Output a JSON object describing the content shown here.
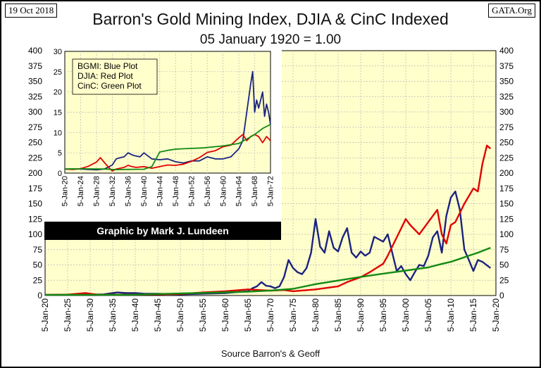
{
  "header": {
    "date": "19 Oct 2018",
    "brand": "GATA.Org",
    "title": "Barron's Gold Mining Index, DJIA & CinC Indexed",
    "subtitle": "05 January 1920 = 1.00",
    "source": "Source Barron's & Geoff",
    "credit": "Graphic by Mark J. Lundeen"
  },
  "chart_data": [
    {
      "type": "line",
      "title": "Barron's Gold Mining Index, DJIA & CinC Indexed",
      "subtitle": "05 January 1920 = 1.00",
      "xlabel": "",
      "ylabel": "",
      "x_ticks": [
        "5-Jan-20",
        "5-Jan-25",
        "5-Jan-30",
        "5-Jan-35",
        "5-Jan-40",
        "5-Jan-45",
        "5-Jan-50",
        "5-Jan-55",
        "5-Jan-60",
        "5-Jan-65",
        "5-Jan-70",
        "5-Jan-75",
        "5-Jan-80",
        "5-Jan-85",
        "5-Jan-90",
        "5-Jan-95",
        "5-Jan-00",
        "5-Jan-05",
        "5-Jan-10",
        "5-Jan-15",
        "5-Jan-20"
      ],
      "y_ticks": [
        0,
        25,
        50,
        75,
        100,
        125,
        150,
        175,
        200,
        225,
        250,
        275,
        300,
        325,
        350,
        375,
        400
      ],
      "xlim": [
        1920,
        2020
      ],
      "ylim": [
        0,
        400
      ],
      "grid": true,
      "series": [
        {
          "color": "#1a237e",
          "x": [
            1920,
            1930,
            1933,
            1935,
            1936,
            1938,
            1940,
            1942,
            1945,
            1950,
            1955,
            1960,
            1963,
            1965,
            1966,
            1967,
            1968,
            1969,
            1970,
            1971,
            1972,
            1973,
            1974,
            1975,
            1976,
            1977,
            1978,
            1979,
            1980,
            1981,
            1982,
            1983,
            1984,
            1985,
            1986,
            1987,
            1988,
            1989,
            1990,
            1991,
            1992,
            1993,
            1994,
            1995,
            1996,
            1997,
            1998,
            1999,
            2000,
            2001,
            2002,
            2003,
            2004,
            2005,
            2006,
            2007,
            2008,
            2009,
            2010,
            2011,
            2012,
            2013,
            2014,
            2015,
            2016,
            2017,
            2018.8
          ],
          "y": [
            1,
            1.5,
            2,
            4,
            5,
            4,
            4,
            3,
            3,
            2,
            3,
            4,
            6,
            7,
            12,
            15,
            22,
            16,
            15,
            12,
            15,
            30,
            58,
            45,
            38,
            35,
            45,
            70,
            125,
            80,
            70,
            105,
            78,
            72,
            95,
            110,
            70,
            62,
            72,
            65,
            70,
            96,
            92,
            88,
            100,
            70,
            40,
            48,
            35,
            25,
            38,
            50,
            48,
            65,
            95,
            105,
            70,
            130,
            160,
            170,
            140,
            75,
            58,
            40,
            58,
            55,
            45
          ]
        },
        {
          "color": "#e00000",
          "x": [
            1920,
            1925,
            1929,
            1930,
            1932,
            1935,
            1940,
            1945,
            1950,
            1955,
            1960,
            1965,
            1970,
            1973,
            1975,
            1980,
            1985,
            1987,
            1990,
            1992,
            1995,
            1996,
            1998,
            2000,
            2001,
            2003,
            2005,
            2007,
            2008,
            2009,
            2010,
            2011,
            2013,
            2015,
            2016,
            2017,
            2018,
            2018.8
          ],
          "y": [
            1,
            1.5,
            4,
            3,
            1,
            1.5,
            1.5,
            2,
            2.5,
            5,
            7,
            10,
            8,
            9,
            7,
            10,
            15,
            22,
            30,
            38,
            52,
            65,
            95,
            125,
            115,
            100,
            120,
            140,
            100,
            85,
            115,
            120,
            150,
            175,
            170,
            215,
            245,
            240
          ]
        },
        {
          "color": "#138a13",
          "x": [
            1920,
            1925,
            1930,
            1935,
            1940,
            1945,
            1950,
            1955,
            1960,
            1965,
            1970,
            1975,
            1980,
            1985,
            1990,
            1995,
            2000,
            2005,
            2008,
            2010,
            2012,
            2014,
            2016,
            2018.8
          ],
          "y": [
            1,
            1.2,
            1.3,
            1.1,
            1.4,
            2.5,
            3.5,
            4.3,
            5.2,
            6.2,
            8.1,
            10.9,
            18.6,
            24.5,
            30.3,
            35.7,
            40.8,
            46,
            51.6,
            55,
            60,
            65,
            70,
            78
          ]
        }
      ]
    },
    {
      "type": "line",
      "title": "",
      "legend": [
        "BGMI: Blue Plot",
        "DJIA: Red Plot",
        "CinC: Green Plot"
      ],
      "x_ticks": [
        "5-Jan-20",
        "5-Jan-24",
        "5-Jan-28",
        "5-Jan-32",
        "5-Jan-36",
        "5-Jan-40",
        "5-Jan-44",
        "5-Jan-48",
        "5-Jan-52",
        "5-Jan-56",
        "5-Jan-60",
        "5-Jan-64",
        "5-Jan-68",
        "5-Jan-72"
      ],
      "y_ticks": [
        0,
        5,
        10,
        15,
        20,
        25,
        30
      ],
      "xlim": [
        1920,
        1972
      ],
      "ylim": [
        0,
        30
      ],
      "grid": true,
      "series": [
        {
          "color": "#1a237e",
          "x": [
            1920,
            1924,
            1928,
            1930,
            1932,
            1933,
            1934,
            1935,
            1936,
            1937,
            1938,
            1939,
            1940,
            1942,
            1944,
            1946,
            1948,
            1950,
            1952,
            1954,
            1956,
            1958,
            1960,
            1962,
            1964,
            1965,
            1966,
            1967,
            1967.5,
            1968,
            1968.5,
            1969,
            1970,
            1970.5,
            1971,
            1971.5,
            1972
          ],
          "y": [
            1,
            1,
            0.8,
            1,
            2,
            3.5,
            3.8,
            4,
            5,
            4.5,
            4.2,
            4,
            5,
            3.5,
            3.3,
            3.5,
            2.8,
            2.5,
            3,
            3,
            4,
            3.5,
            3.5,
            4,
            6,
            8,
            15,
            22,
            25,
            15,
            18,
            16,
            20,
            14,
            17,
            15,
            12
          ]
        },
        {
          "color": "#e00000",
          "x": [
            1920,
            1922,
            1924,
            1926,
            1928,
            1929,
            1930,
            1931,
            1932,
            1933,
            1935,
            1936,
            1937,
            1938,
            1940,
            1942,
            1944,
            1946,
            1948,
            1950,
            1952,
            1954,
            1956,
            1958,
            1960,
            1962,
            1964,
            1965,
            1966,
            1967,
            1968,
            1969,
            1970,
            1971,
            1972
          ],
          "y": [
            1,
            0.9,
            1.1,
            1.7,
            2.7,
            3.8,
            2.6,
            1.5,
            0.5,
            1,
            1.4,
            1.9,
            1.6,
            1.4,
            1.6,
            1.2,
            1.6,
            2,
            1.9,
            2.2,
            2.9,
            3.8,
            5.1,
            5.5,
            6.5,
            6.9,
            8.7,
            9.5,
            8,
            9,
            9.5,
            9,
            7.5,
            9,
            8
          ]
        },
        {
          "color": "#138a13",
          "x": [
            1920,
            1925,
            1930,
            1933,
            1935,
            1940,
            1942,
            1944,
            1946,
            1948,
            1950,
            1955,
            1960,
            1964,
            1966,
            1968,
            1970,
            1972
          ],
          "y": [
            1,
            1.05,
            1.0,
            0.85,
            0.9,
            0.95,
            1.6,
            5.2,
            5.6,
            5.9,
            6,
            6.2,
            6.7,
            7.3,
            8.4,
            9.5,
            11,
            12
          ]
        }
      ]
    }
  ]
}
